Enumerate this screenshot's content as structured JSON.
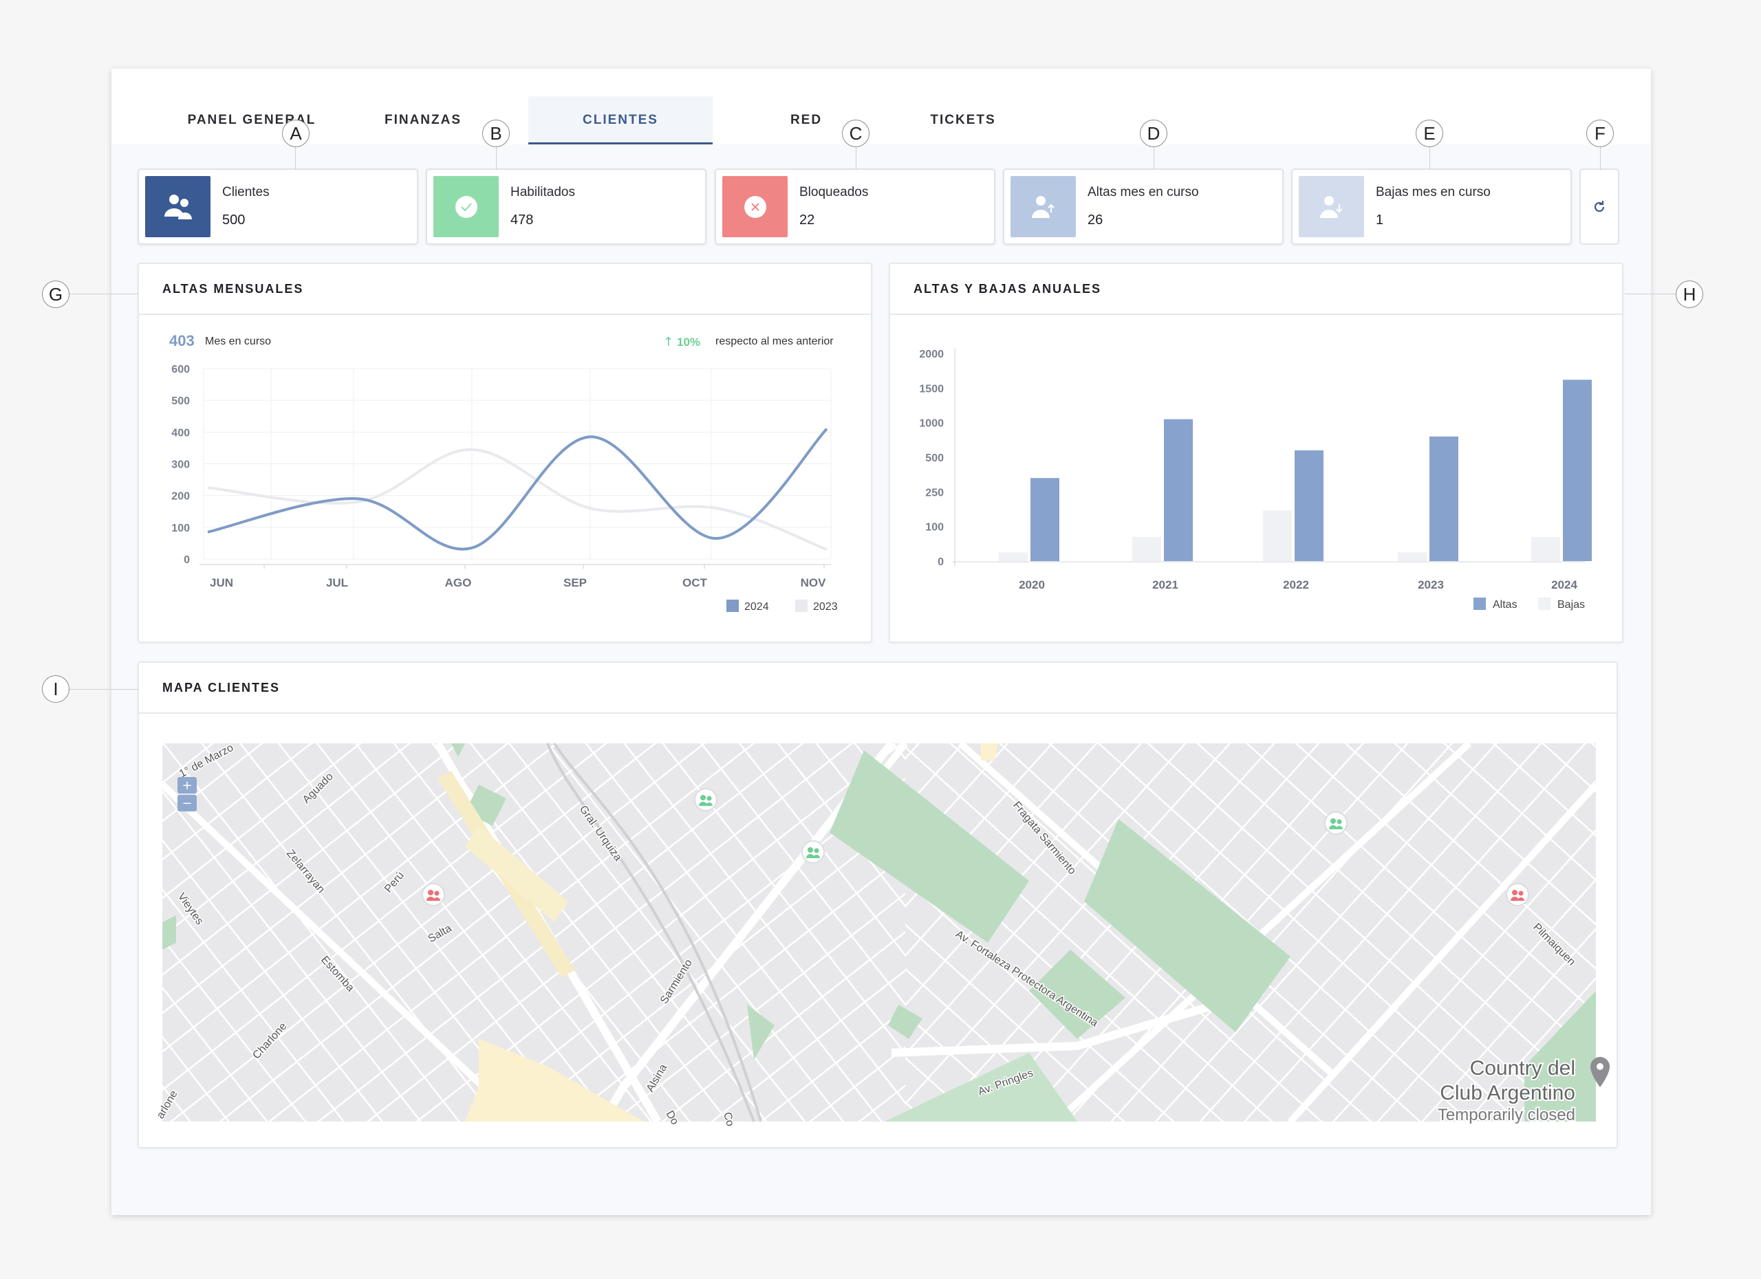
{
  "tabs": [
    {
      "label": "PANEL GENERAL",
      "active": false
    },
    {
      "label": "FINANZAS",
      "active": false
    },
    {
      "label": "CLIENTES",
      "active": true
    },
    {
      "label": "RED",
      "active": false
    },
    {
      "label": "TICKETS",
      "active": false
    }
  ],
  "callouts": {
    "a": "A",
    "b": "B",
    "c": "C",
    "d": "D",
    "e": "E",
    "f": "F",
    "g": "G",
    "h": "H",
    "i": "I"
  },
  "stats": [
    {
      "label": "Clientes",
      "value": "500",
      "icon": "users-icon",
      "color": "#3a5a94"
    },
    {
      "label": "Habilitados",
      "value": "478",
      "icon": "check-icon",
      "color": "#8fdcab"
    },
    {
      "label": "Bloqueados",
      "value": "22",
      "icon": "x-circle-icon",
      "color": "#f08585"
    },
    {
      "label": "Altas mes en curso",
      "value": "26",
      "icon": "user-up-icon",
      "color": "#b7c8e3"
    },
    {
      "label": "Bajas mes en curso",
      "value": "1",
      "icon": "user-down-icon",
      "color": "#d2dced"
    }
  ],
  "refresh": {
    "icon": "refresh-icon"
  },
  "altas_mensuales": {
    "title": "ALTAS MENSUALES",
    "current_value": "403",
    "current_label": "Mes en curso",
    "change": "10%",
    "change_label": "respecto al mes anterior"
  },
  "altas_bajas": {
    "title": "ALTAS Y BAJAS ANUALES"
  },
  "mapa": {
    "title": "MAPA CLIENTES",
    "zoom_in": "+",
    "zoom_out": "−",
    "place_line1": "Country del",
    "place_line2": "Club Argentino",
    "place_status": "Temporarily closed",
    "streets": [
      "1° de Marzo",
      "Aguado",
      "Zelarrayan",
      "Vieytes",
      "Perú",
      "Salta",
      "Estomba",
      "Charlone",
      "arlone",
      "Gral. Urquiza",
      "Sarmiento",
      "Alsina",
      "Do",
      "Co",
      "Fragata Sarmiento",
      "Av. Fortaleza Protectora Argentina",
      "Av. Pringles",
      "Pilmaiquen"
    ]
  },
  "chart_data": [
    {
      "type": "line",
      "categories": [
        "JUN",
        "JUL",
        "AGO",
        "SEP",
        "OCT",
        "NOV"
      ],
      "ylim": [
        0,
        600
      ],
      "yticks": [
        0,
        100,
        200,
        300,
        400,
        500,
        600
      ],
      "series": [
        {
          "name": "2024",
          "color": "#7f9bc6",
          "values": [
            85,
            190,
            35,
            385,
            65,
            410
          ]
        },
        {
          "name": "2023",
          "color": "#e9eaee",
          "values": [
            225,
            180,
            345,
            160,
            160,
            30
          ]
        }
      ],
      "legend": "bottom-right"
    },
    {
      "type": "bar",
      "categories": [
        "2020",
        "2021",
        "2022",
        "2023",
        "2024"
      ],
      "yticks": [
        "0",
        "100",
        "250",
        "500",
        "1000",
        "1500",
        "2000"
      ],
      "scale": "nonlinear-ticks",
      "series": [
        {
          "name": "Altas",
          "color": "#87a2cc",
          "values": [
            350,
            1050,
            600,
            800,
            1620
          ]
        },
        {
          "name": "Bajas",
          "color": "#f0f1f4",
          "values": [
            25,
            70,
            170,
            25,
            70
          ]
        }
      ],
      "legend": "bottom-right"
    }
  ]
}
